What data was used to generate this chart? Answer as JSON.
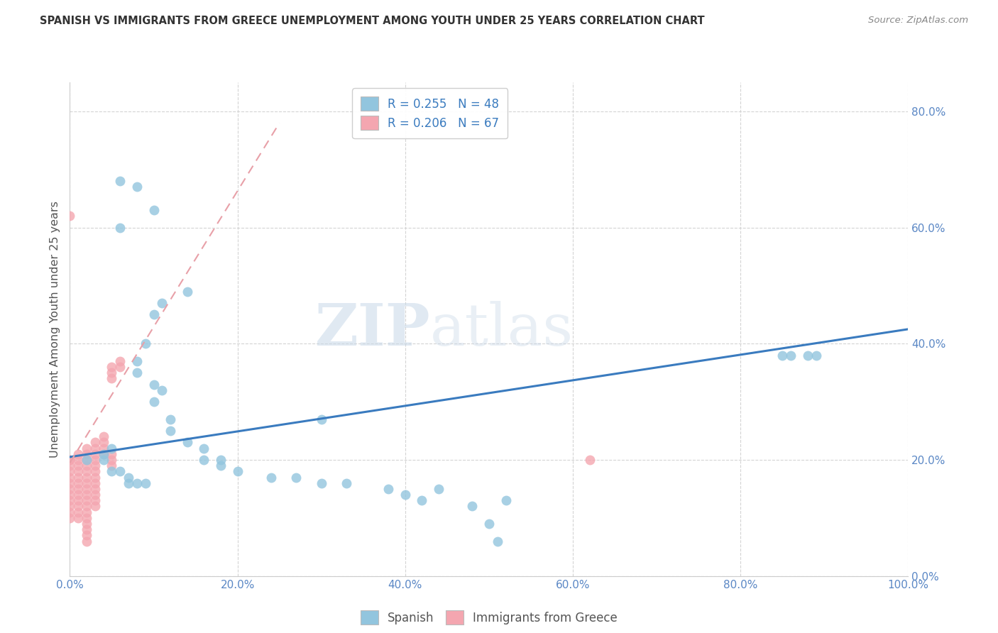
{
  "title": "SPANISH VS IMMIGRANTS FROM GREECE UNEMPLOYMENT AMONG YOUTH UNDER 25 YEARS CORRELATION CHART",
  "source": "Source: ZipAtlas.com",
  "ylabel": "Unemployment Among Youth under 25 years",
  "xlim": [
    0.0,
    1.0
  ],
  "ylim": [
    0.0,
    0.85
  ],
  "xticks": [
    0.0,
    0.2,
    0.4,
    0.6,
    0.8,
    1.0
  ],
  "xticklabels": [
    "0.0%",
    "20.0%",
    "40.0%",
    "60.0%",
    "80.0%",
    "100.0%"
  ],
  "yticks": [
    0.0,
    0.2,
    0.4,
    0.6,
    0.8
  ],
  "yticklabels": [
    "0.0%",
    "20.0%",
    "40.0%",
    "60.0%",
    "80.0%"
  ],
  "spanish_color": "#92c5de",
  "greek_color": "#f4a6b0",
  "trendline_spanish_color": "#3a7bbf",
  "trendline_greek_color": "#e8a0a8",
  "legend_R_spanish": "0.255",
  "legend_N_spanish": "48",
  "legend_R_greek": "0.206",
  "legend_N_greek": "67",
  "legend_text_color": "#3a7bbf",
  "background_color": "#ffffff",
  "grid_color": "#d0d0d0",
  "watermark_ZIP": "ZIP",
  "watermark_atlas": "atlas",
  "bottom_legend_spanish": "Spanish",
  "bottom_legend_greek": "Immigrants from Greece",
  "spanish_x": [
    0.02,
    0.06,
    0.08,
    0.1,
    0.06,
    0.14,
    0.11,
    0.1,
    0.09,
    0.08,
    0.08,
    0.1,
    0.11,
    0.1,
    0.12,
    0.12,
    0.14,
    0.16,
    0.16,
    0.18,
    0.18,
    0.2,
    0.24,
    0.27,
    0.3,
    0.33,
    0.38,
    0.44,
    0.52,
    0.85,
    0.88,
    0.05,
    0.04,
    0.04,
    0.05,
    0.06,
    0.07,
    0.07,
    0.08,
    0.09,
    0.4,
    0.42,
    0.48,
    0.5,
    0.51,
    0.86,
    0.89,
    0.3
  ],
  "spanish_y": [
    0.2,
    0.68,
    0.67,
    0.63,
    0.6,
    0.49,
    0.47,
    0.45,
    0.4,
    0.37,
    0.35,
    0.33,
    0.32,
    0.3,
    0.27,
    0.25,
    0.23,
    0.22,
    0.2,
    0.2,
    0.19,
    0.18,
    0.17,
    0.17,
    0.16,
    0.16,
    0.15,
    0.15,
    0.13,
    0.38,
    0.38,
    0.22,
    0.21,
    0.2,
    0.18,
    0.18,
    0.17,
    0.16,
    0.16,
    0.16,
    0.14,
    0.13,
    0.12,
    0.09,
    0.06,
    0.38,
    0.38,
    0.27
  ],
  "greek_x": [
    0.0,
    0.0,
    0.0,
    0.0,
    0.0,
    0.0,
    0.0,
    0.0,
    0.0,
    0.0,
    0.0,
    0.0,
    0.01,
    0.01,
    0.01,
    0.01,
    0.01,
    0.01,
    0.01,
    0.01,
    0.01,
    0.01,
    0.01,
    0.01,
    0.02,
    0.02,
    0.02,
    0.02,
    0.02,
    0.02,
    0.02,
    0.02,
    0.02,
    0.02,
    0.02,
    0.02,
    0.02,
    0.02,
    0.02,
    0.02,
    0.02,
    0.03,
    0.03,
    0.03,
    0.03,
    0.03,
    0.03,
    0.03,
    0.03,
    0.03,
    0.03,
    0.03,
    0.03,
    0.04,
    0.04,
    0.04,
    0.04,
    0.05,
    0.05,
    0.05,
    0.05,
    0.05,
    0.05,
    0.06,
    0.06,
    0.0,
    0.62
  ],
  "greek_y": [
    0.2,
    0.2,
    0.19,
    0.18,
    0.17,
    0.16,
    0.15,
    0.14,
    0.13,
    0.12,
    0.11,
    0.1,
    0.21,
    0.2,
    0.19,
    0.18,
    0.17,
    0.16,
    0.15,
    0.14,
    0.13,
    0.12,
    0.11,
    0.1,
    0.22,
    0.21,
    0.2,
    0.19,
    0.18,
    0.17,
    0.16,
    0.15,
    0.14,
    0.13,
    0.12,
    0.11,
    0.1,
    0.09,
    0.08,
    0.07,
    0.06,
    0.23,
    0.22,
    0.21,
    0.2,
    0.19,
    0.18,
    0.17,
    0.16,
    0.15,
    0.14,
    0.13,
    0.12,
    0.24,
    0.23,
    0.22,
    0.21,
    0.36,
    0.35,
    0.34,
    0.21,
    0.2,
    0.19,
    0.37,
    0.36,
    0.62,
    0.2
  ],
  "trendline_spanish_x0": 0.0,
  "trendline_spanish_y0": 0.205,
  "trendline_spanish_x1": 1.0,
  "trendline_spanish_y1": 0.425,
  "trendline_greek_x0": 0.0,
  "trendline_greek_y0": 0.195,
  "trendline_greek_x1": 0.25,
  "trendline_greek_y1": 0.78
}
